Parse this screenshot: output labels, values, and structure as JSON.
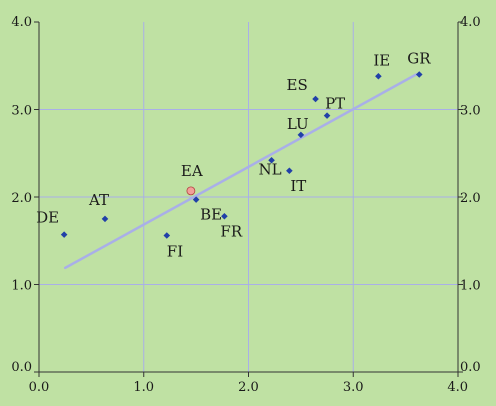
{
  "chart_data": {
    "type": "scatter",
    "title": "",
    "xlabel": "",
    "ylabel": "",
    "xlim": [
      0.0,
      4.0
    ],
    "ylim": [
      0.0,
      4.0
    ],
    "xticks": [
      "0.0",
      "1.0",
      "2.0",
      "3.0",
      "4.0"
    ],
    "yticks": [
      "0.0",
      "1.0",
      "2.0",
      "3.0",
      "4.0"
    ],
    "tick_values": [
      0,
      1,
      2,
      3,
      4
    ],
    "grid": true,
    "legend": "none",
    "series": [
      {
        "points": [
          {
            "label": "DE",
            "x": 0.24,
            "y": 1.57
          },
          {
            "label": "AT",
            "x": 0.63,
            "y": 1.75
          },
          {
            "label": "FI",
            "x": 1.22,
            "y": 1.56
          },
          {
            "label": "BE",
            "x": 1.5,
            "y": 1.97
          },
          {
            "label": "FR",
            "x": 1.77,
            "y": 1.78
          },
          {
            "label": "NL",
            "x": 2.22,
            "y": 2.42
          },
          {
            "label": "IT",
            "x": 2.39,
            "y": 2.3
          },
          {
            "label": "LU",
            "x": 2.5,
            "y": 2.71
          },
          {
            "label": "ES",
            "x": 2.64,
            "y": 3.12
          },
          {
            "label": "PT",
            "x": 2.75,
            "y": 2.93
          },
          {
            "label": "IE",
            "x": 3.24,
            "y": 3.38
          },
          {
            "label": "GR",
            "x": 3.63,
            "y": 3.4
          }
        ]
      },
      {
        "points": [
          {
            "label": "EA",
            "x": 1.45,
            "y": 2.07
          }
        ]
      }
    ],
    "trend_line": {
      "x": [
        0.25,
        3.6
      ],
      "y": [
        1.19,
        3.4
      ]
    },
    "colors": {
      "background": "#bfe1a3",
      "grid": "#a9afe8",
      "points": "#2140a8",
      "highlight_fill": "#f2a098",
      "highlight_stroke": "#b04040",
      "trend": "#a9afe8",
      "axis": "#333333"
    }
  }
}
